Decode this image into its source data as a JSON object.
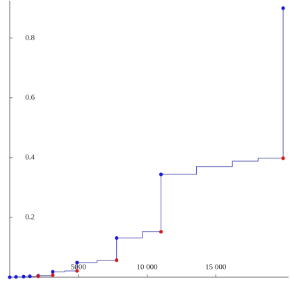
{
  "chart_data": {
    "type": "step-scatter",
    "xlim": [
      0,
      20300
    ],
    "ylim": [
      0,
      0.925
    ],
    "xticks": [
      5000,
      {
        "value": 10000,
        "label": "10 000"
      },
      {
        "value": 15000,
        "label": "15 000"
      }
    ],
    "yticks": [
      0.2,
      0.4,
      0.6,
      0.8
    ],
    "series": [
      {
        "kind": "line",
        "color": "#5555b0",
        "x": [
          0,
          455,
          455,
          1010,
          1010,
          1465,
          1465,
          2070,
          2070,
          3130,
          3130,
          4000,
          4000,
          4900,
          4900,
          6360,
          6360,
          7780,
          7780,
          9650,
          9650,
          11010,
          11010,
          13590,
          13590,
          16210,
          16210,
          18080,
          18080,
          19900,
          19900
        ],
        "values": [
          0,
          0,
          0.001,
          0.001,
          0.002,
          0.002,
          0.003,
          0.003,
          0.005,
          0.005,
          0.018,
          0.018,
          0.021,
          0.021,
          0.049,
          0.049,
          0.057,
          0.057,
          0.131,
          0.131,
          0.152,
          0.152,
          0.344,
          0.344,
          0.37,
          0.37,
          0.388,
          0.388,
          0.398,
          0.398,
          0.9
        ]
      },
      {
        "kind": "points",
        "color": "#1a1ad8",
        "x": [
          0,
          455,
          1010,
          1465,
          2070,
          3130,
          4900,
          7780,
          11010,
          19900
        ],
        "values": [
          0,
          0.001,
          0.002,
          0.003,
          0.005,
          0.018,
          0.049,
          0.131,
          0.344,
          0.9
        ]
      },
      {
        "kind": "points",
        "color": "#d81a1a",
        "x": [
          2070,
          3130,
          4900,
          7780,
          11010,
          19900
        ],
        "values": [
          0.003,
          0.007,
          0.021,
          0.057,
          0.152,
          0.398
        ]
      }
    ]
  }
}
